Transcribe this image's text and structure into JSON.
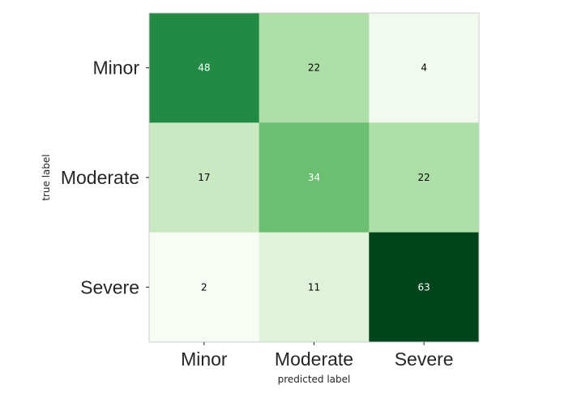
{
  "chart_data": {
    "type": "heatmap",
    "title": "",
    "xlabel": "predicted label",
    "ylabel": "true label",
    "x_categories": [
      "Minor",
      "Moderate",
      "Severe"
    ],
    "y_categories": [
      "Minor",
      "Moderate",
      "Severe"
    ],
    "values": [
      [
        48,
        22,
        4
      ],
      [
        17,
        34,
        22
      ],
      [
        2,
        11,
        63
      ]
    ],
    "colormap": "Greens",
    "grid": false,
    "colorbar": false
  }
}
